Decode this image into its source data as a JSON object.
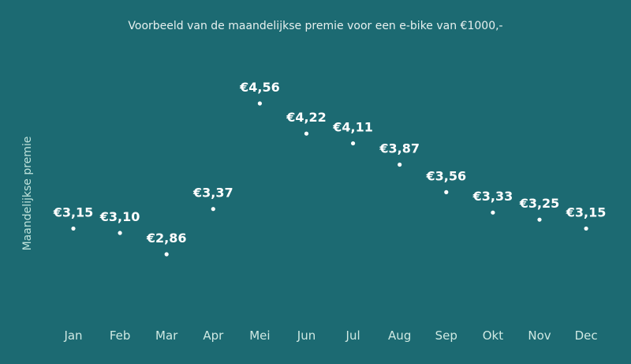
{
  "chart_data": {
    "type": "scatter",
    "title": "Voorbeeld van de maandelijkse premie voor een e-bike van €1000,-",
    "xlabel": "",
    "ylabel": "Maandelijkse premie",
    "categories": [
      "Jan",
      "Feb",
      "Mar",
      "Apr",
      "Mei",
      "Jun",
      "Jul",
      "Aug",
      "Sep",
      "Okt",
      "Nov",
      "Dec"
    ],
    "values": [
      3.15,
      3.1,
      2.86,
      3.37,
      4.56,
      4.22,
      4.11,
      3.87,
      3.56,
      3.33,
      3.25,
      3.15
    ],
    "labels": [
      "€3,15",
      "€3,10",
      "€2,86",
      "€3,37",
      "€4,56",
      "€4,22",
      "€4,11",
      "€3,87",
      "€3,56",
      "€3,33",
      "€3,25",
      "€3,15"
    ],
    "grid": false,
    "legend": "none",
    "colors": {
      "background": "#1c6a72",
      "points": "#ffffff",
      "ticks": "#cfe9e3",
      "ylabel": "#bfe3dc"
    }
  }
}
